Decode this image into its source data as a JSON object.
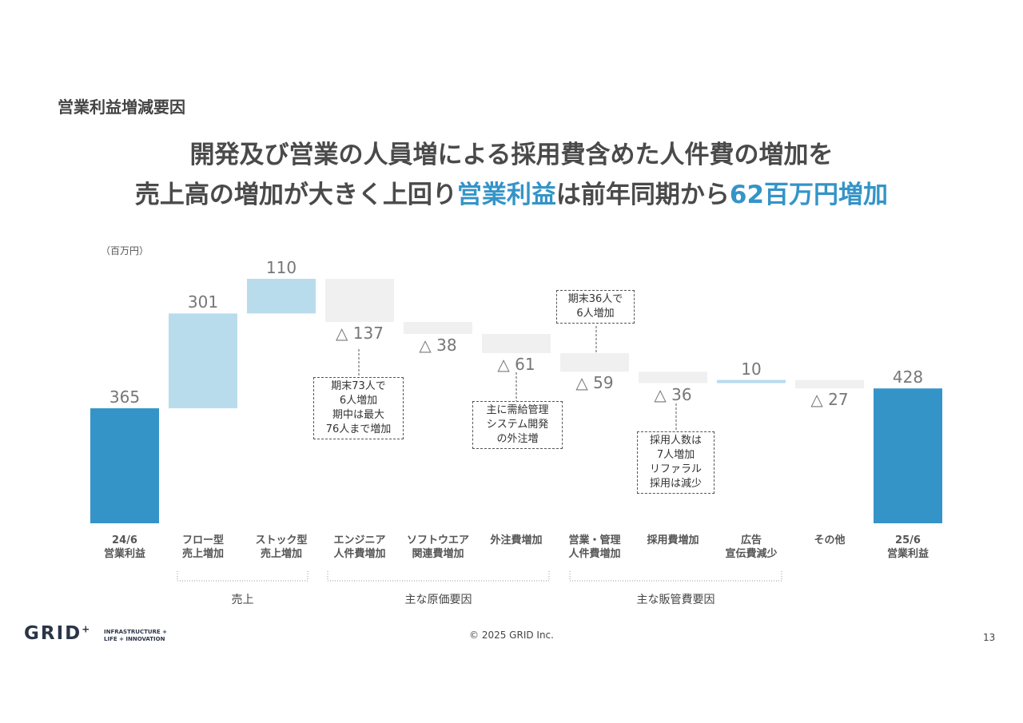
{
  "slide": {
    "section_title": "営業利益増減要因",
    "headline": {
      "line1": "開発及び営業の人員増による採用費含めた人件費の増加を",
      "line2": [
        {
          "text": "売上高の増加が大きく上回り",
          "highlight": false
        },
        {
          "text": "営業利益",
          "highlight": true
        },
        {
          "text": "は前年同期から",
          "highlight": false
        },
        {
          "text": "62百万円増加",
          "highlight": true
        }
      ]
    },
    "logo": "GRID",
    "logo_mark": "+",
    "tagline": [
      "INFRASTRUCTURE +",
      "LIFE + INNOVATION"
    ],
    "copyright": "© 2025 GRID Inc.",
    "page_number": "13"
  },
  "chart_data": {
    "type": "waterfall",
    "unit": "（百万円）",
    "categories": [
      "24/6\n営業利益",
      "フロー型\n売上増加",
      "ストック型\n売上増加",
      "エンジニア\n人件費増加",
      "ソフトウエア\n関連費増加",
      "外注費増加",
      "営業・管理\n人件費増加",
      "採用費増加",
      "広告\n宣伝費減少",
      "その他",
      "25/6\n営業利益"
    ],
    "values": [
      365,
      301,
      110,
      -137,
      -38,
      -61,
      -59,
      -36,
      10,
      -27,
      428
    ],
    "value_labels": [
      "365",
      "301",
      "110",
      "△ 137",
      "△ 38",
      "△ 61",
      "△ 59",
      "△ 36",
      "10",
      "△ 27",
      "428"
    ],
    "colors": {
      "total": "#3494c8",
      "increase": "#b9dced",
      "decrease": "#f0f0f0"
    },
    "annotations": [
      "期末73人で\n6人増加\n期中は最大\n76人まで増加",
      "主に需給管理\nシステム開発\nの外注増",
      "期末36人で\n6人増加",
      "採用人数は\n7人増加\nリファラル\n採用は減少"
    ],
    "groups": [
      "売上",
      "主な原価要因",
      "主な販管費要因"
    ]
  }
}
